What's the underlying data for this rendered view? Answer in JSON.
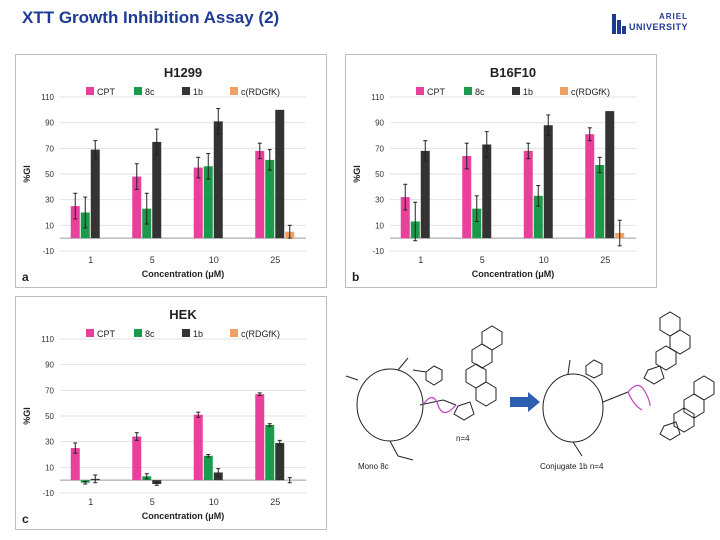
{
  "slide": {
    "title": "XTT Growth Inhibition Assay (2)",
    "logo_line1": "ARIEL",
    "logo_line2": "UNIVERSITY"
  },
  "colors": {
    "CPT": "#e8409b",
    "8c": "#1a9a4a",
    "1b": "#333333",
    "c(RDGfK)": "#f0a060",
    "title_blue": "#1f3a93"
  },
  "chart_data": [
    {
      "type": "bar",
      "panel": "a",
      "title": "H1299",
      "categories": [
        "1",
        "5",
        "10",
        "25"
      ],
      "series": [
        {
          "name": "CPT",
          "values": [
            25,
            48,
            55,
            68
          ],
          "errors": [
            10,
            10,
            8,
            6
          ]
        },
        {
          "name": "8c",
          "values": [
            20,
            23,
            56,
            61
          ],
          "errors": [
            12,
            12,
            10,
            8
          ]
        },
        {
          "name": "1b",
          "values": [
            69,
            75,
            91,
            100
          ],
          "errors": [
            7,
            10,
            10,
            0
          ]
        },
        {
          "name": "c(RDGfK)",
          "values": [
            0,
            0,
            0,
            5
          ],
          "errors": [
            0,
            0,
            0,
            5
          ]
        }
      ],
      "ylabel": "%GI",
      "xlabel": "Concentration (μM)",
      "ylim": [
        -10,
        110
      ],
      "yticks": [
        "-10",
        "10",
        "30",
        "50",
        "70",
        "90",
        "110"
      ],
      "legend": "top"
    },
    {
      "type": "bar",
      "panel": "b",
      "title": "B16F10",
      "categories": [
        "1",
        "5",
        "10",
        "25"
      ],
      "series": [
        {
          "name": "CPT",
          "values": [
            32,
            64,
            68,
            81
          ],
          "errors": [
            10,
            10,
            6,
            5
          ]
        },
        {
          "name": "8c",
          "values": [
            13,
            23,
            33,
            57
          ],
          "errors": [
            15,
            10,
            8,
            6
          ]
        },
        {
          "name": "1b",
          "values": [
            68,
            73,
            88,
            99
          ],
          "errors": [
            8,
            10,
            8,
            0
          ]
        },
        {
          "name": "c(RDGfK)",
          "values": [
            0,
            0,
            0,
            4
          ],
          "errors": [
            0,
            0,
            0,
            10
          ]
        }
      ],
      "ylabel": "%GI",
      "xlabel": "Concentration (μM)",
      "ylim": [
        -10,
        110
      ],
      "yticks": [
        "-10",
        "10",
        "30",
        "50",
        "70",
        "90",
        "110"
      ],
      "legend": "top"
    },
    {
      "type": "bar",
      "panel": "c",
      "title": "HEK",
      "categories": [
        "1",
        "5",
        "10",
        "25"
      ],
      "series": [
        {
          "name": "CPT",
          "values": [
            25,
            34,
            51,
            67
          ],
          "errors": [
            4,
            3,
            2,
            1
          ]
        },
        {
          "name": "8c",
          "values": [
            -2,
            3,
            19,
            43
          ],
          "errors": [
            1,
            2,
            1,
            1
          ]
        },
        {
          "name": "1b",
          "values": [
            1,
            -3,
            6,
            29
          ],
          "errors": [
            3,
            1,
            3,
            2
          ]
        },
        {
          "name": "c(RDGfK)",
          "values": [
            0,
            0,
            0,
            0
          ],
          "errors": [
            0,
            0,
            0,
            2
          ]
        }
      ],
      "ylabel": "%GI",
      "xlabel": "Concentration (μM)",
      "ylim": [
        -10,
        110
      ],
      "yticks": [
        "-10",
        "10",
        "30",
        "50",
        "70",
        "90",
        "110"
      ],
      "legend": "top"
    }
  ],
  "scheme": {
    "left_label": "Mono 8c",
    "right_label": "Conjugate 1b n=4",
    "left_n": "n=4"
  }
}
